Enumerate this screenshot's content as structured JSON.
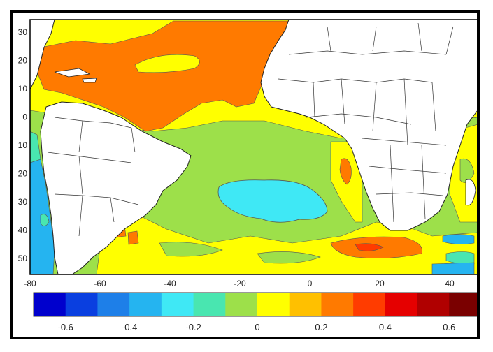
{
  "map": {
    "lon_ticks": [
      "-80",
      "-60",
      "-40",
      "-20",
      "0",
      "20",
      "40"
    ],
    "lat_ticks": [
      "30",
      "20",
      "10",
      "0",
      "10",
      "20",
      "30",
      "40",
      "50"
    ],
    "colorbar": {
      "labels": [
        "-0.6",
        "-0.4",
        "-0.2",
        "0",
        "0.2",
        "0.4",
        "0.6"
      ],
      "colors": [
        "#0000cd",
        "#0a3fe0",
        "#1e7fe8",
        "#25b4f0",
        "#3fe8f5",
        "#49e6b0",
        "#9de04a",
        "#ffff00",
        "#ffc000",
        "#ff7a00",
        "#ff3c00",
        "#e50000",
        "#b00000",
        "#7a0000"
      ]
    },
    "field_colors": {
      "ocean_base": "#9de04a",
      "cyan": "#3fe8f5",
      "light_blue": "#25b4f0",
      "teal": "#49e6b0",
      "yellow": "#ffff00",
      "orange": "#ff7a00",
      "red": "#ff3c00",
      "land": "#ffffff"
    }
  }
}
